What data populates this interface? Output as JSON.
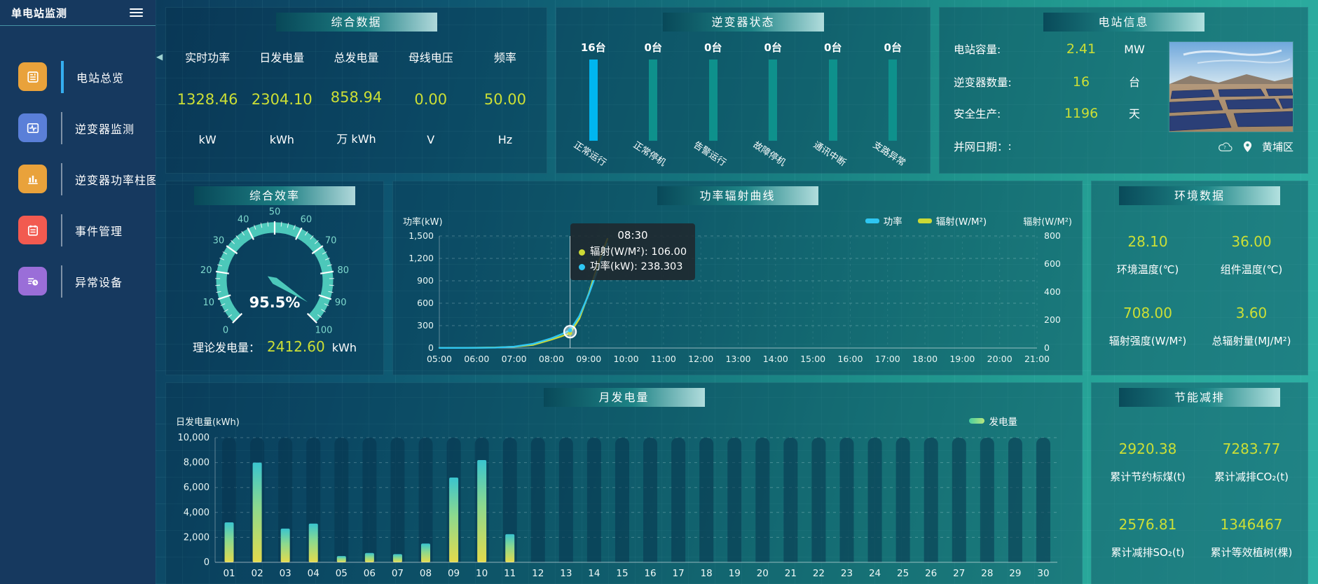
{
  "app": {
    "title": "单电站监测"
  },
  "sidebar": {
    "items": [
      {
        "label": "电站总览",
        "active": true
      },
      {
        "label": "逆变器监测",
        "active": false
      },
      {
        "label": "逆变器功率柱图",
        "active": false
      },
      {
        "label": "事件管理",
        "active": false
      },
      {
        "label": "异常设备",
        "active": false
      }
    ]
  },
  "panels": {
    "summary": {
      "title": "综合数据",
      "metrics": [
        {
          "label": "实时功率",
          "value": "1328.46",
          "unit": "kW"
        },
        {
          "label": "日发电量",
          "value": "2304.10",
          "unit": "kWh"
        },
        {
          "label": "总发电量",
          "value": "858.94",
          "unit": "万 kWh"
        },
        {
          "label": "母线电压",
          "value": "0.00",
          "unit": "V"
        },
        {
          "label": "频率",
          "value": "50.00",
          "unit": "Hz"
        }
      ]
    },
    "inverter_status": {
      "title": "逆变器状态",
      "bars": [
        {
          "count": "16台",
          "label": "正常运行",
          "highlight": true
        },
        {
          "count": "0台",
          "label": "正常停机",
          "highlight": false
        },
        {
          "count": "0台",
          "label": "告警运行",
          "highlight": false
        },
        {
          "count": "0台",
          "label": "故障停机",
          "highlight": false
        },
        {
          "count": "0台",
          "label": "通讯中断",
          "highlight": false
        },
        {
          "count": "0台",
          "label": "支路异常",
          "highlight": false
        }
      ]
    },
    "station_info": {
      "title": "电站信息",
      "rows": [
        {
          "label": "电站容量:",
          "value": "2.41",
          "unit": "MW"
        },
        {
          "label": "逆变器数量:",
          "value": "16",
          "unit": "台"
        },
        {
          "label": "安全生产:",
          "value": "1196",
          "unit": "天"
        }
      ],
      "grid_date_label": "并网日期：",
      "grid_date_value": ":",
      "location": "黄埔区"
    },
    "efficiency": {
      "title": "综合效率",
      "theory_label": "理论发电量：",
      "theory_value": "2412.60",
      "theory_unit": "kWh"
    },
    "power_curve": {
      "title": "功率辐射曲线",
      "left_axis_name": "功率(kW)",
      "right_axis_name": "辐射(W/M²)"
    },
    "environment": {
      "title": "环境数据",
      "metrics": [
        {
          "value": "28.10",
          "label": "环境温度(℃)"
        },
        {
          "value": "36.00",
          "label": "组件温度(℃)"
        },
        {
          "value": "708.00",
          "label": "辐射强度(W/M²)"
        },
        {
          "value": "3.60",
          "label": "总辐射量(MJ/M²)"
        }
      ]
    },
    "monthly": {
      "title": "月发电量",
      "axis_name": "日发电量(kWh)",
      "legend": "发电量"
    },
    "saving": {
      "title": "节能减排",
      "metrics": [
        {
          "value": "2920.38",
          "label": "累计节约标煤(t)"
        },
        {
          "value": "7283.77",
          "label": "累计减排CO₂(t)"
        },
        {
          "value": "2576.81",
          "label": "累计减排SO₂(t)"
        },
        {
          "value": "1346467",
          "label": "累计等效植树(棵)"
        }
      ]
    }
  },
  "chart_data": [
    {
      "type": "gauge",
      "title": "综合效率",
      "min": 0,
      "max": 100,
      "major_step": 10,
      "minor_step": 2.5,
      "value": 95.5,
      "value_label": "95.5%",
      "arc_color": "#4cc8ba",
      "tick_label_color": "#7ed8cc"
    },
    {
      "type": "line",
      "title": "功率辐射曲线",
      "x_min": 5,
      "x_max": 21,
      "x_labels": [
        "05:00",
        "06:00",
        "07:00",
        "08:00",
        "09:00",
        "10:00",
        "11:00",
        "12:00",
        "13:00",
        "14:00",
        "15:00",
        "16:00",
        "17:00",
        "18:00",
        "19:00",
        "20:00",
        "21:00"
      ],
      "y_left": {
        "name": "功率(kW)",
        "min": 0,
        "max": 1500,
        "step": 300
      },
      "y_right": {
        "name": "辐射(W/M²)",
        "min": 0,
        "max": 800,
        "step": 200
      },
      "series": [
        {
          "name": "功率",
          "axis": "left",
          "color": "#2ec6f2",
          "points": [
            [
              5,
              2
            ],
            [
              5.5,
              2
            ],
            [
              6,
              3
            ],
            [
              6.5,
              6
            ],
            [
              7,
              18
            ],
            [
              7.5,
              55
            ],
            [
              8,
              130
            ],
            [
              8.25,
              180
            ],
            [
              8.5,
              238.3
            ],
            [
              8.75,
              430
            ],
            [
              9,
              720
            ],
            [
              9.25,
              1060
            ],
            [
              9.5,
              1400
            ]
          ]
        },
        {
          "name": "辐射(W/M²)",
          "axis": "right",
          "color": "#ccd935",
          "points": [
            [
              5,
              1
            ],
            [
              5.5,
              1
            ],
            [
              6,
              2
            ],
            [
              6.5,
              4
            ],
            [
              7,
              9
            ],
            [
              7.5,
              22
            ],
            [
              8,
              60
            ],
            [
              8.25,
              82
            ],
            [
              8.5,
              106
            ],
            [
              8.75,
              210
            ],
            [
              9,
              390
            ],
            [
              9.25,
              600
            ],
            [
              9.5,
              780
            ]
          ]
        }
      ],
      "pointer_t": 8.5,
      "tooltip": {
        "time": "08:30",
        "rows": [
          {
            "text": "辐射(W/M²): 106.00",
            "color": "#ccd935"
          },
          {
            "text": "功率(kW): 238.303",
            "color": "#2ec6f2"
          }
        ]
      }
    },
    {
      "type": "bar",
      "title": "月发电量",
      "categories": [
        "01",
        "02",
        "03",
        "04",
        "05",
        "06",
        "07",
        "08",
        "09",
        "10",
        "11",
        "12",
        "13",
        "14",
        "15",
        "16",
        "17",
        "18",
        "19",
        "20",
        "21",
        "22",
        "23",
        "24",
        "25",
        "26",
        "27",
        "28",
        "29",
        "30"
      ],
      "values": [
        3200,
        8000,
        2700,
        3100,
        500,
        750,
        650,
        1500,
        6800,
        8200,
        2250,
        0,
        0,
        0,
        0,
        0,
        0,
        0,
        0,
        0,
        0,
        0,
        0,
        0,
        0,
        0,
        0,
        0,
        0,
        0
      ],
      "ylabel": "日发电量(kWh)",
      "ylim": [
        0,
        10000
      ],
      "y_step": 2000,
      "legend": "发电量",
      "bar_color_bottom": "#e4da4c",
      "bar_color_mid": "#8cd98e",
      "bar_color_top": "#3ac4ce",
      "shadow_color": "rgba(8,52,78,0.55)"
    }
  ]
}
